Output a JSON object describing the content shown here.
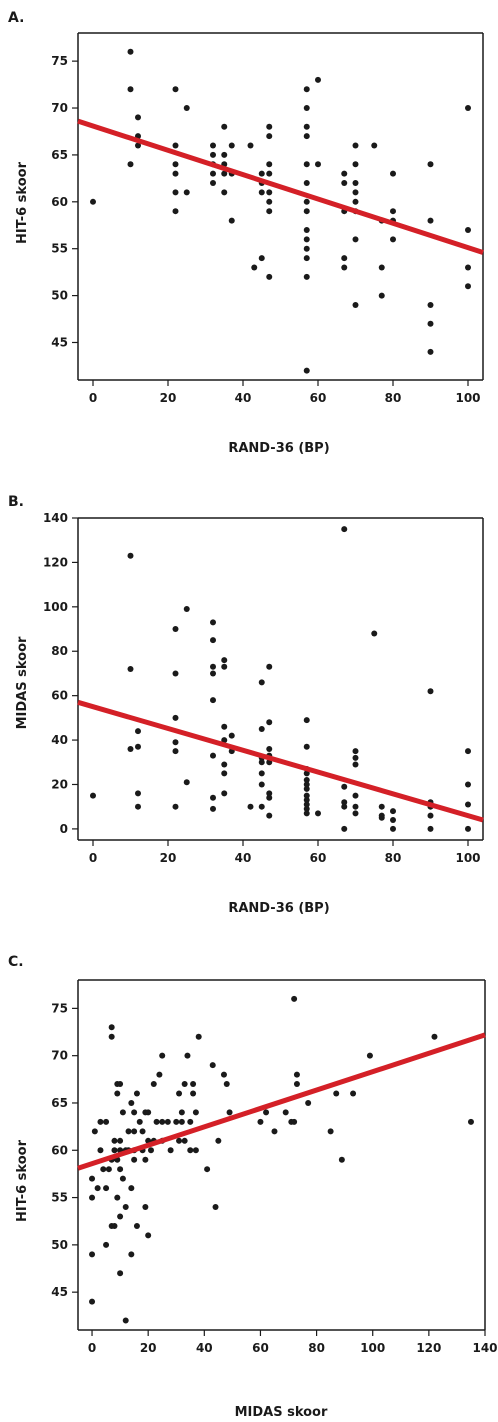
{
  "chart_data": [
    {
      "type": "scatter",
      "panel_label": "A.",
      "xlabel": "RAND-36 (BP)",
      "ylabel": "HIT-6 skoor",
      "xlim": [
        -4,
        104
      ],
      "ylim": [
        41,
        78
      ],
      "x_ticks": [
        0,
        20,
        40,
        60,
        80,
        100
      ],
      "y_ticks": [
        45,
        50,
        55,
        60,
        65,
        70,
        75
      ],
      "point_color": "#1a1a1a",
      "trend_color": "#d42027",
      "trendline": {
        "x": [
          -4,
          104
        ],
        "y": [
          68.6,
          54.6
        ]
      },
      "points": [
        [
          0,
          60
        ],
        [
          10,
          76
        ],
        [
          10,
          72
        ],
        [
          10,
          64
        ],
        [
          12,
          69
        ],
        [
          12,
          67
        ],
        [
          12,
          66
        ],
        [
          22,
          72
        ],
        [
          22,
          66
        ],
        [
          22,
          64
        ],
        [
          22,
          63
        ],
        [
          22,
          61
        ],
        [
          22,
          59
        ],
        [
          25,
          70
        ],
        [
          25,
          61
        ],
        [
          32,
          66
        ],
        [
          32,
          65
        ],
        [
          32,
          64
        ],
        [
          32,
          63
        ],
        [
          32,
          62
        ],
        [
          35,
          68
        ],
        [
          35,
          65
        ],
        [
          35,
          64
        ],
        [
          35,
          63
        ],
        [
          35,
          61
        ],
        [
          37,
          66
        ],
        [
          37,
          63
        ],
        [
          37,
          58
        ],
        [
          42,
          66
        ],
        [
          43,
          53
        ],
        [
          45,
          63
        ],
        [
          45,
          62
        ],
        [
          45,
          61
        ],
        [
          45,
          54
        ],
        [
          47,
          68
        ],
        [
          47,
          67
        ],
        [
          47,
          64
        ],
        [
          47,
          63
        ],
        [
          47,
          61
        ],
        [
          47,
          60
        ],
        [
          47,
          59
        ],
        [
          47,
          52
        ],
        [
          57,
          72
        ],
        [
          57,
          70
        ],
        [
          57,
          68
        ],
        [
          57,
          67
        ],
        [
          57,
          64
        ],
        [
          57,
          62
        ],
        [
          57,
          60
        ],
        [
          57,
          59
        ],
        [
          57,
          57
        ],
        [
          57,
          56
        ],
        [
          57,
          55
        ],
        [
          57,
          54
        ],
        [
          57,
          52
        ],
        [
          57,
          42
        ],
        [
          60,
          73
        ],
        [
          60,
          64
        ],
        [
          67,
          63
        ],
        [
          67,
          62
        ],
        [
          67,
          59
        ],
        [
          67,
          54
        ],
        [
          67,
          53
        ],
        [
          70,
          66
        ],
        [
          70,
          64
        ],
        [
          70,
          62
        ],
        [
          70,
          61
        ],
        [
          70,
          60
        ],
        [
          70,
          59
        ],
        [
          70,
          56
        ],
        [
          70,
          49
        ],
        [
          75,
          66
        ],
        [
          77,
          58
        ],
        [
          77,
          53
        ],
        [
          77,
          50
        ],
        [
          80,
          63
        ],
        [
          80,
          59
        ],
        [
          80,
          58
        ],
        [
          80,
          56
        ],
        [
          90,
          64
        ],
        [
          90,
          58
        ],
        [
          90,
          49
        ],
        [
          90,
          47
        ],
        [
          90,
          44
        ],
        [
          100,
          70
        ],
        [
          100,
          57
        ],
        [
          100,
          53
        ],
        [
          100,
          51
        ]
      ]
    },
    {
      "type": "scatter",
      "panel_label": "B.",
      "xlabel": "RAND-36 (BP)",
      "ylabel": "MIDAS skoor",
      "xlim": [
        -4,
        104
      ],
      "ylim": [
        -5,
        140
      ],
      "x_ticks": [
        0,
        20,
        40,
        60,
        80,
        100
      ],
      "y_ticks": [
        0,
        20,
        40,
        60,
        80,
        100,
        120,
        140
      ],
      "point_color": "#1a1a1a",
      "trend_color": "#d42027",
      "trendline": {
        "x": [
          -4,
          104
        ],
        "y": [
          57,
          4
        ]
      },
      "points": [
        [
          0,
          15
        ],
        [
          10,
          123
        ],
        [
          10,
          72
        ],
        [
          10,
          36
        ],
        [
          12,
          44
        ],
        [
          12,
          37
        ],
        [
          12,
          16
        ],
        [
          12,
          10
        ],
        [
          22,
          90
        ],
        [
          22,
          70
        ],
        [
          22,
          50
        ],
        [
          22,
          39
        ],
        [
          22,
          35
        ],
        [
          22,
          10
        ],
        [
          25,
          99
        ],
        [
          25,
          21
        ],
        [
          32,
          93
        ],
        [
          32,
          85
        ],
        [
          32,
          73
        ],
        [
          32,
          70
        ],
        [
          32,
          58
        ],
        [
          32,
          33
        ],
        [
          32,
          14
        ],
        [
          32,
          9
        ],
        [
          35,
          76
        ],
        [
          35,
          73
        ],
        [
          35,
          46
        ],
        [
          35,
          40
        ],
        [
          35,
          29
        ],
        [
          35,
          25
        ],
        [
          35,
          16
        ],
        [
          37,
          42
        ],
        [
          37,
          35
        ],
        [
          42,
          10
        ],
        [
          45,
          66
        ],
        [
          45,
          45
        ],
        [
          45,
          32
        ],
        [
          45,
          30
        ],
        [
          45,
          25
        ],
        [
          45,
          20
        ],
        [
          45,
          10
        ],
        [
          47,
          73
        ],
        [
          47,
          48
        ],
        [
          47,
          36
        ],
        [
          47,
          33
        ],
        [
          47,
          30
        ],
        [
          47,
          16
        ],
        [
          47,
          14
        ],
        [
          47,
          6
        ],
        [
          57,
          49
        ],
        [
          57,
          37
        ],
        [
          57,
          27
        ],
        [
          57,
          25
        ],
        [
          57,
          22
        ],
        [
          57,
          20
        ],
        [
          57,
          18
        ],
        [
          57,
          15
        ],
        [
          57,
          13
        ],
        [
          57,
          11
        ],
        [
          57,
          9
        ],
        [
          57,
          7
        ],
        [
          60,
          7
        ],
        [
          67,
          135
        ],
        [
          67,
          19
        ],
        [
          67,
          12
        ],
        [
          67,
          10
        ],
        [
          67,
          0
        ],
        [
          70,
          35
        ],
        [
          70,
          32
        ],
        [
          70,
          29
        ],
        [
          70,
          15
        ],
        [
          70,
          10
        ],
        [
          70,
          7
        ],
        [
          75,
          88
        ],
        [
          77,
          10
        ],
        [
          77,
          6
        ],
        [
          77,
          5
        ],
        [
          80,
          8
        ],
        [
          80,
          4
        ],
        [
          80,
          0
        ],
        [
          90,
          62
        ],
        [
          90,
          12
        ],
        [
          90,
          10
        ],
        [
          90,
          6
        ],
        [
          90,
          0
        ],
        [
          100,
          35
        ],
        [
          100,
          20
        ],
        [
          100,
          11
        ],
        [
          100,
          0
        ]
      ]
    },
    {
      "type": "scatter",
      "panel_label": "C.",
      "xlabel": "MIDAS skoor",
      "ylabel": "HIT-6 skoor",
      "xlim": [
        -5,
        140
      ],
      "ylim": [
        41,
        78
      ],
      "x_ticks": [
        0,
        20,
        40,
        60,
        80,
        100,
        120,
        140
      ],
      "y_ticks": [
        45,
        50,
        55,
        60,
        65,
        70,
        75
      ],
      "point_color": "#1a1a1a",
      "trend_color": "#d42027",
      "trendline": {
        "x": [
          -5,
          140
        ],
        "y": [
          58.1,
          72.2
        ]
      },
      "points": [
        [
          0,
          57
        ],
        [
          0,
          55
        ],
        [
          0,
          49
        ],
        [
          0,
          44
        ],
        [
          1,
          62
        ],
        [
          2,
          56
        ],
        [
          3,
          60
        ],
        [
          3,
          63
        ],
        [
          4,
          58
        ],
        [
          5,
          63
        ],
        [
          5,
          50
        ],
        [
          5,
          56
        ],
        [
          6,
          58
        ],
        [
          7,
          72
        ],
        [
          7,
          73
        ],
        [
          7,
          52
        ],
        [
          7,
          59
        ],
        [
          8,
          60
        ],
        [
          8,
          61
        ],
        [
          8,
          52
        ],
        [
          9,
          67
        ],
        [
          9,
          66
        ],
        [
          9,
          59
        ],
        [
          9,
          55
        ],
        [
          10,
          67
        ],
        [
          10,
          61
        ],
        [
          10,
          60
        ],
        [
          10,
          58
        ],
        [
          10,
          53
        ],
        [
          10,
          47
        ],
        [
          11,
          64
        ],
        [
          11,
          57
        ],
        [
          12,
          54
        ],
        [
          12,
          60
        ],
        [
          12,
          42
        ],
        [
          13,
          62
        ],
        [
          13,
          60
        ],
        [
          14,
          65
        ],
        [
          14,
          56
        ],
        [
          14,
          49
        ],
        [
          15,
          64
        ],
        [
          15,
          62
        ],
        [
          15,
          60
        ],
        [
          15,
          59
        ],
        [
          16,
          66
        ],
        [
          16,
          52
        ],
        [
          17,
          63
        ],
        [
          18,
          62
        ],
        [
          18,
          60
        ],
        [
          19,
          64
        ],
        [
          19,
          54
        ],
        [
          19,
          59
        ],
        [
          20,
          64
        ],
        [
          20,
          61
        ],
        [
          20,
          51
        ],
        [
          21,
          60
        ],
        [
          22,
          67
        ],
        [
          22,
          61
        ],
        [
          23,
          63
        ],
        [
          24,
          68
        ],
        [
          25,
          70
        ],
        [
          25,
          61
        ],
        [
          25,
          63
        ],
        [
          27,
          63
        ],
        [
          28,
          60
        ],
        [
          30,
          63
        ],
        [
          31,
          66
        ],
        [
          31,
          61
        ],
        [
          32,
          64
        ],
        [
          32,
          63
        ],
        [
          33,
          67
        ],
        [
          33,
          61
        ],
        [
          34,
          70
        ],
        [
          35,
          63
        ],
        [
          35,
          60
        ],
        [
          36,
          67
        ],
        [
          36,
          66
        ],
        [
          37,
          64
        ],
        [
          37,
          60
        ],
        [
          38,
          72
        ],
        [
          41,
          58
        ],
        [
          43,
          69
        ],
        [
          44,
          54
        ],
        [
          45,
          61
        ],
        [
          47,
          68
        ],
        [
          48,
          67
        ],
        [
          49,
          64
        ],
        [
          60,
          63
        ],
        [
          62,
          64
        ],
        [
          65,
          62
        ],
        [
          69,
          64
        ],
        [
          71,
          63
        ],
        [
          72,
          76
        ],
        [
          72,
          63
        ],
        [
          73,
          68
        ],
        [
          73,
          67
        ],
        [
          77,
          65
        ],
        [
          85,
          62
        ],
        [
          87,
          66
        ],
        [
          89,
          59
        ],
        [
          93,
          66
        ],
        [
          99,
          70
        ],
        [
          122,
          72
        ],
        [
          135,
          63
        ]
      ]
    }
  ]
}
